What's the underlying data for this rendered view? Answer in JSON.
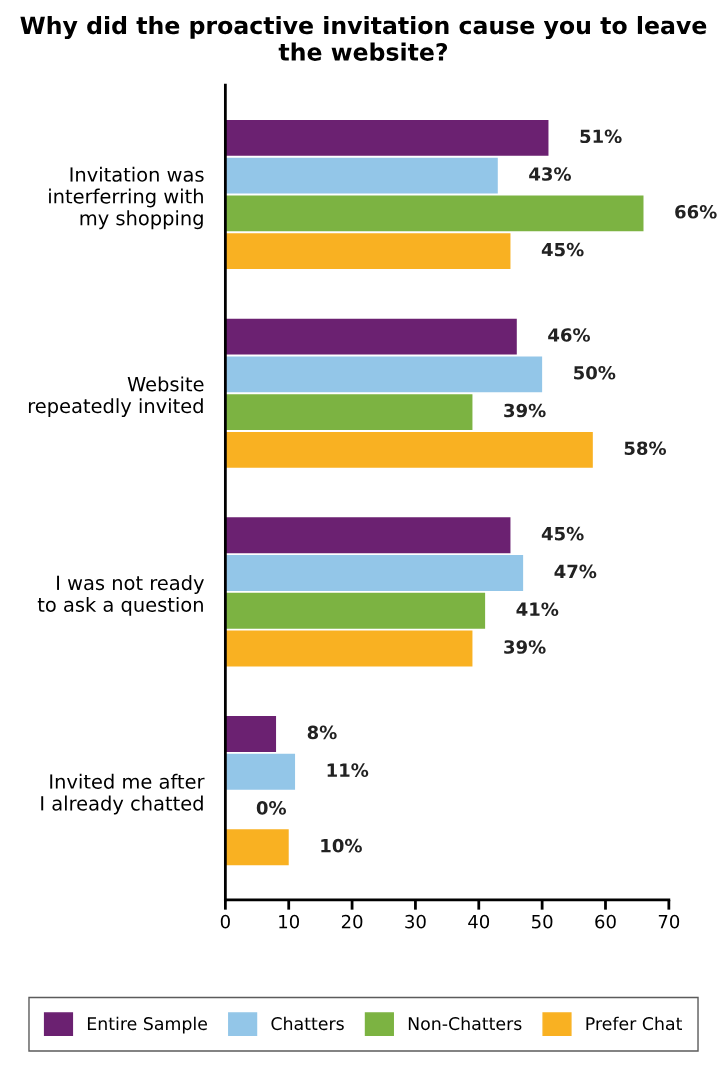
{
  "chart_data": {
    "type": "bar",
    "orientation": "horizontal",
    "title": "Why did the proactive invitation cause you to leave the website?",
    "categories": [
      "Invitation was\ninterferring with\nmy shopping",
      "Website\nrepeatedly invited",
      "I was not ready\nto ask a question",
      "Invited me after\nI already chatted"
    ],
    "series": [
      {
        "name": "Entire Sample",
        "color": "#6b2171",
        "values": [
          51,
          46,
          45,
          8
        ],
        "value_labels": [
          "51%",
          "46%",
          "45%",
          "8%"
        ]
      },
      {
        "name": "Chatters",
        "color": "#93c6e8",
        "values": [
          43,
          50,
          47,
          11
        ],
        "value_labels": [
          "43%",
          "50%",
          "47%",
          "11%"
        ]
      },
      {
        "name": "Non-Chatters",
        "color": "#7cb342",
        "values": [
          66,
          39,
          41,
          0
        ],
        "value_labels": [
          "66%",
          "39%",
          "41%",
          "0%"
        ]
      },
      {
        "name": "Prefer Chat",
        "color": "#f9b122",
        "values": [
          45,
          58,
          39,
          10
        ],
        "value_labels": [
          "45%",
          "58%",
          "39%",
          "10%"
        ]
      }
    ],
    "xlim": [
      0,
      70
    ],
    "xticks": [
      0,
      10,
      20,
      30,
      40,
      50,
      60,
      70
    ],
    "grid": false,
    "legend": "bottom"
  }
}
